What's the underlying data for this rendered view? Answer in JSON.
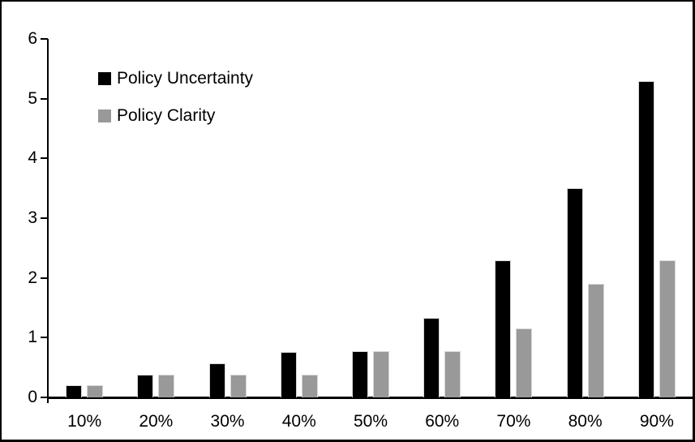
{
  "chart_data": {
    "type": "bar",
    "title": "",
    "xlabel": "",
    "ylabel": "",
    "categories": [
      "10%",
      "20%",
      "30%",
      "40%",
      "50%",
      "60%",
      "70%",
      "80%",
      "90%"
    ],
    "series": [
      {
        "name": "Policy Uncertainty",
        "color": "#000000",
        "values": [
          0.2,
          0.38,
          0.57,
          0.76,
          0.78,
          1.33,
          2.3,
          3.5,
          5.3
        ]
      },
      {
        "name": "Policy Clarity",
        "color": "#999999",
        "values": [
          0.2,
          0.38,
          0.38,
          0.38,
          0.77,
          0.77,
          1.15,
          1.9,
          2.3
        ]
      }
    ],
    "ylim": [
      0,
      6
    ],
    "yticks": [
      0,
      1,
      2,
      3,
      4,
      5,
      6
    ],
    "grid": false,
    "legend_position": "top-left",
    "frame_color": "#000000",
    "background_color": "#ffffff"
  }
}
